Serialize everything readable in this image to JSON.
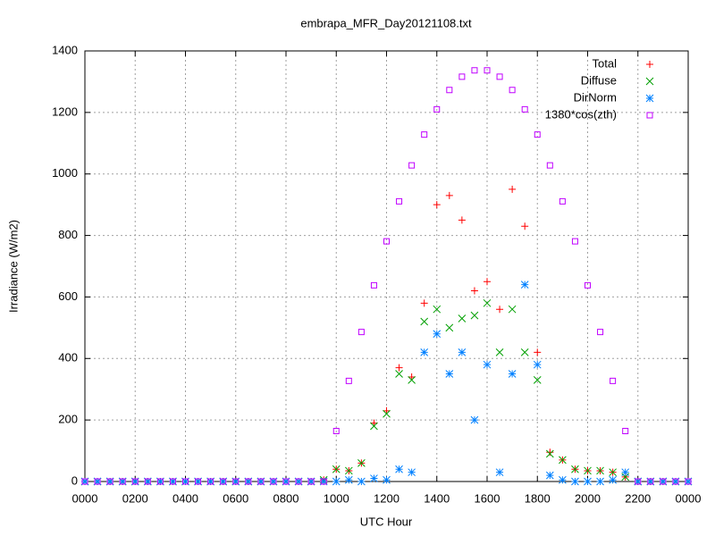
{
  "chart_data": {
    "type": "scatter",
    "title": "embrapa_MFR_Day20121108.txt",
    "x_label": "UTC Hour",
    "y_label": "Irradiance (W/m2)",
    "x": [
      0,
      0.5,
      1,
      1.5,
      2,
      2.5,
      3,
      3.5,
      4,
      4.5,
      5,
      5.5,
      6,
      6.5,
      7,
      7.5,
      8,
      8.5,
      9,
      9.5,
      10,
      10.5,
      11,
      11.5,
      12,
      12.5,
      13,
      13.5,
      14,
      14.5,
      15,
      15.5,
      16,
      16.5,
      17,
      17.5,
      18,
      18.5,
      19,
      19.5,
      20,
      20.5,
      21,
      21.5,
      22,
      22.5,
      23,
      23.5,
      24
    ],
    "series": [
      {
        "name": "Total",
        "color": "#ff0000",
        "marker": "plus",
        "values": [
          0,
          0,
          0,
          0,
          0,
          0,
          0,
          0,
          0,
          0,
          0,
          0,
          0,
          0,
          0,
          0,
          0,
          0,
          0,
          5,
          40,
          35,
          60,
          190,
          230,
          370,
          340,
          580,
          900,
          930,
          850,
          620,
          650,
          560,
          950,
          830,
          420,
          95,
          70,
          40,
          35,
          35,
          30,
          15,
          0,
          0,
          0,
          0,
          0
        ]
      },
      {
        "name": "Diffuse",
        "color": "#00a000",
        "marker": "cross",
        "values": [
          0,
          0,
          0,
          0,
          0,
          0,
          0,
          0,
          0,
          0,
          0,
          0,
          0,
          0,
          0,
          0,
          0,
          0,
          0,
          5,
          40,
          35,
          60,
          180,
          220,
          350,
          330,
          520,
          560,
          500,
          530,
          540,
          580,
          420,
          560,
          420,
          330,
          90,
          70,
          40,
          35,
          35,
          30,
          15,
          0,
          0,
          0,
          0,
          0
        ]
      },
      {
        "name": "DirNorm",
        "color": "#0080ff",
        "marker": "star",
        "values": [
          0,
          0,
          0,
          0,
          0,
          0,
          0,
          0,
          0,
          0,
          0,
          0,
          0,
          0,
          0,
          0,
          0,
          0,
          0,
          0,
          0,
          5,
          0,
          10,
          5,
          40,
          30,
          420,
          480,
          350,
          420,
          200,
          380,
          30,
          350,
          640,
          380,
          20,
          5,
          0,
          0,
          0,
          5,
          30,
          0,
          0,
          0,
          0,
          0
        ]
      },
      {
        "name": "1380*cos(zth)",
        "color": "#c000ff",
        "marker": "square",
        "values": [
          0,
          0,
          0,
          0,
          0,
          0,
          0,
          0,
          0,
          0,
          0,
          0,
          0,
          0,
          0,
          0,
          0,
          0,
          0,
          0,
          164,
          327,
          486,
          638,
          781,
          911,
          1028,
          1128,
          1210,
          1273,
          1316,
          1337,
          1337,
          1316,
          1273,
          1210,
          1128,
          1028,
          911,
          781,
          638,
          486,
          327,
          164,
          0,
          0,
          0,
          0,
          0
        ]
      }
    ],
    "xlim": [
      0,
      24
    ],
    "xticks": [
      {
        "value": 0,
        "label": "0000"
      },
      {
        "value": 2,
        "label": "0200"
      },
      {
        "value": 4,
        "label": "0400"
      },
      {
        "value": 6,
        "label": "0600"
      },
      {
        "value": 8,
        "label": "0800"
      },
      {
        "value": 10,
        "label": "1000"
      },
      {
        "value": 12,
        "label": "1200"
      },
      {
        "value": 14,
        "label": "1400"
      },
      {
        "value": 16,
        "label": "1600"
      },
      {
        "value": 18,
        "label": "1800"
      },
      {
        "value": 20,
        "label": "2000"
      },
      {
        "value": 22,
        "label": "2200"
      },
      {
        "value": 24,
        "label": "0000"
      }
    ],
    "ylim": [
      0,
      1400
    ],
    "yticks": [
      0,
      200,
      400,
      600,
      800,
      1000,
      1200,
      1400
    ],
    "grid": true,
    "legend": "top-right"
  }
}
